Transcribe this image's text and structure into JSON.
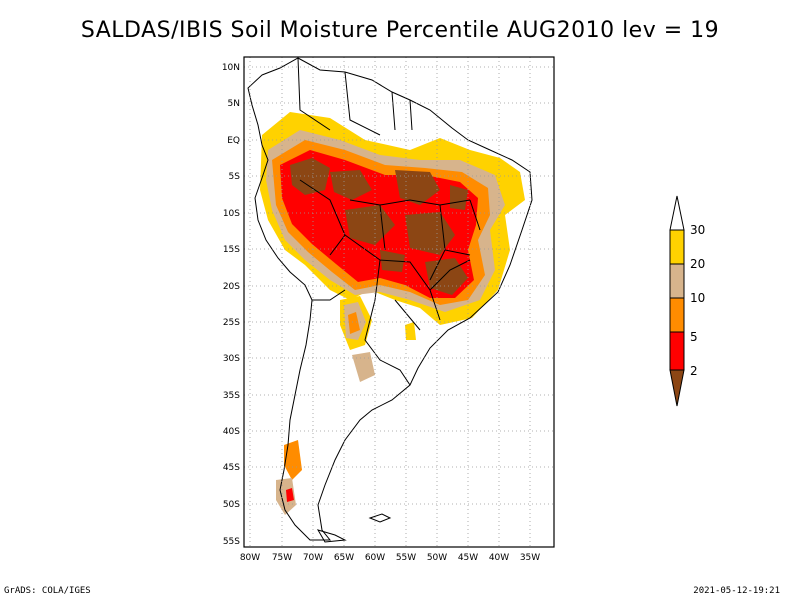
{
  "title": "SALDAS/IBIS Soil Moisture Percentile AUG2010 lev = 19",
  "footer": {
    "left": "GrADS: COLA/IGES",
    "right": "2021-05-12-19:21"
  },
  "map": {
    "region": "South America",
    "variable": "Soil Moisture Percentile",
    "lat_labels": [
      "10N",
      "5N",
      "EQ",
      "5S",
      "10S",
      "15S",
      "20S",
      "25S",
      "30S",
      "35S",
      "40S",
      "45S",
      "50S",
      "55S"
    ],
    "lon_labels": [
      "80W",
      "75W",
      "70W",
      "65W",
      "60W",
      "55W",
      "50W",
      "45W",
      "40W",
      "35W"
    ]
  },
  "legend": {
    "labels": [
      "30",
      "20",
      "10",
      "5",
      "2"
    ],
    "colors": {
      "above30": "#ffffff",
      "c20_30": "#ffd200",
      "c10_20": "#d7b48c",
      "c5_10": "#ff8c00",
      "c2_5": "#ff0000",
      "below2": "#8c4614"
    }
  }
}
